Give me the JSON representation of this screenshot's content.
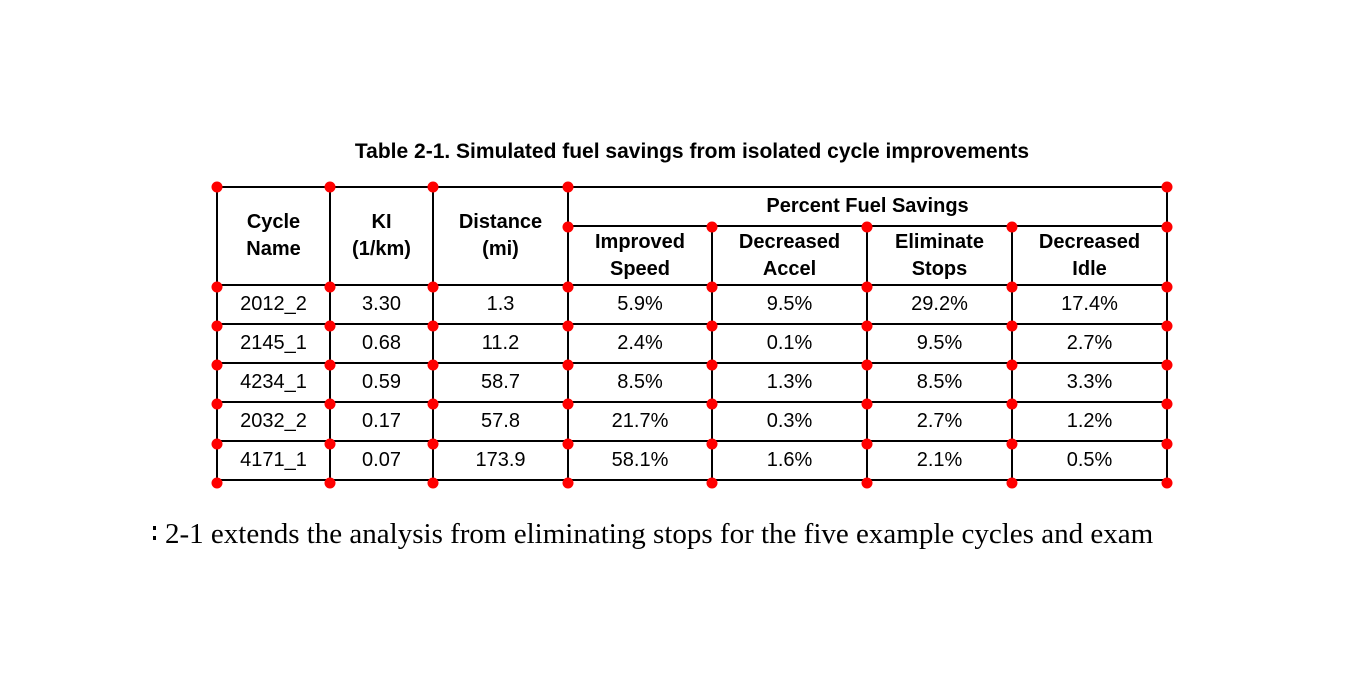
{
  "caption": "Table 2-1. Simulated fuel savings from isolated cycle improvements",
  "table": {
    "group_header": "Percent Fuel Savings",
    "headers": {
      "cycle_name": "Cycle\nName",
      "ki": "KI\n(1/km)",
      "distance": "Distance\n(mi)",
      "improved_speed": "Improved\nSpeed",
      "decreased_accel": "Decreased\nAccel",
      "eliminate_stops": "Eliminate\nStops",
      "decreased_idle": "Decreased\nIdle"
    },
    "rows": [
      [
        "2012_2",
        "3.30",
        "1.3",
        "5.9%",
        "9.5%",
        "29.2%",
        "17.4%"
      ],
      [
        "2145_1",
        "0.68",
        "11.2",
        "2.4%",
        "0.1%",
        "9.5%",
        "2.7%"
      ],
      [
        "4234_1",
        "0.59",
        "58.7",
        "8.5%",
        "1.3%",
        "8.5%",
        "3.3%"
      ],
      [
        "2032_2",
        "0.17",
        "57.8",
        "21.7%",
        "0.3%",
        "2.7%",
        "1.2%"
      ],
      [
        "4171_1",
        "0.07",
        "173.9",
        "58.1%",
        "1.6%",
        "2.1%",
        "0.5%"
      ]
    ]
  },
  "paragraph": {
    "text": "2-1 extends the analysis from eliminating stops for the five example cycles and exam"
  },
  "colors": {
    "marker": "#ff0000",
    "border": "#000000",
    "background": "#ffffff"
  }
}
